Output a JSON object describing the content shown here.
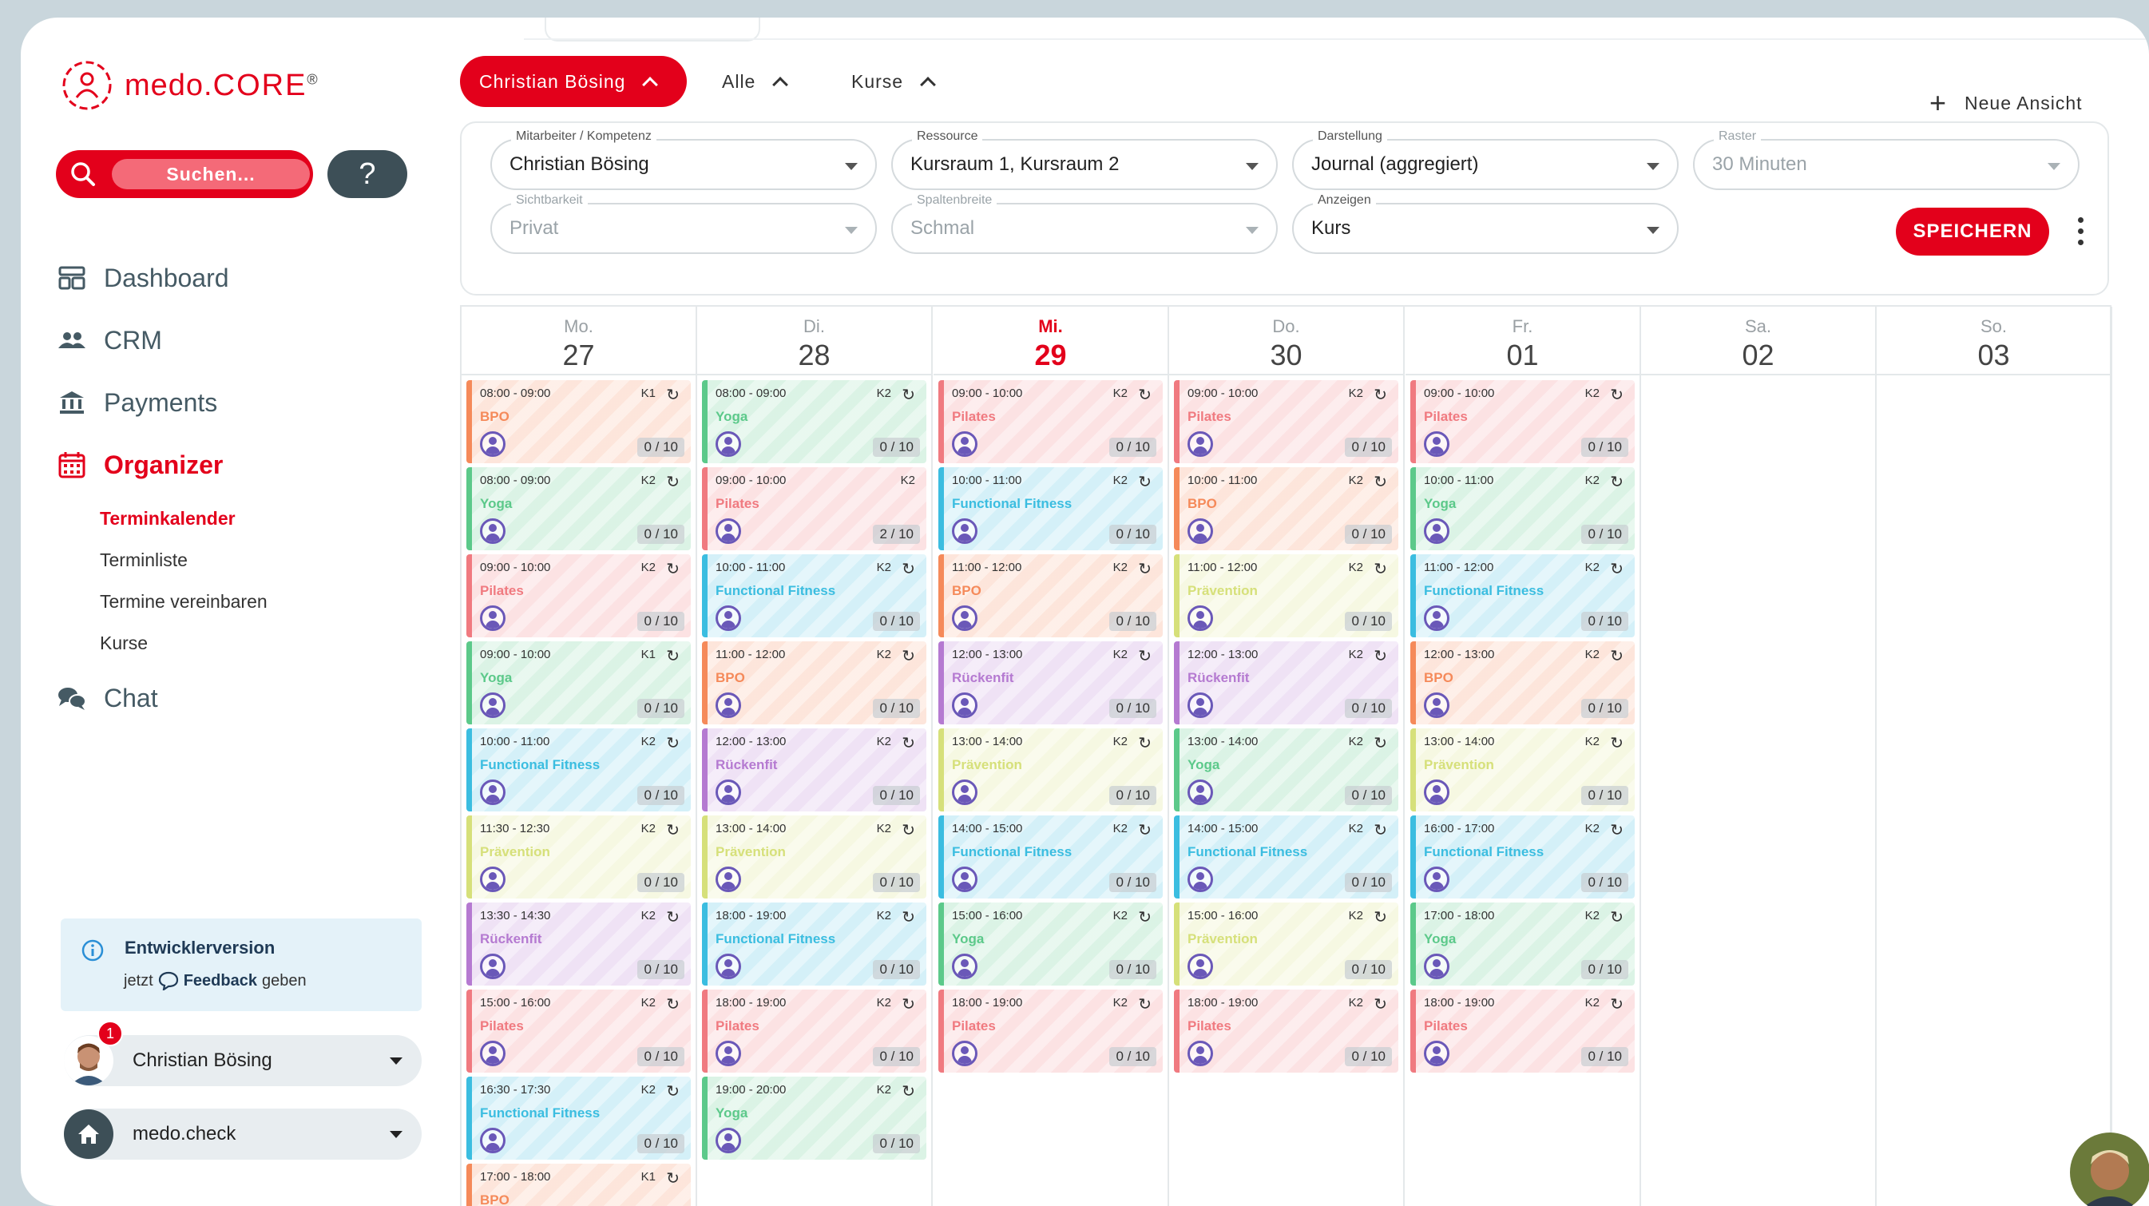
{
  "brand": {
    "name_prefix": "medo.",
    "name_suffix": "CORE",
    "mark": "®"
  },
  "search": {
    "label": "Suchen..."
  },
  "help": {
    "label": "?"
  },
  "nav": {
    "dashboard": "Dashboard",
    "crm": "CRM",
    "payments": "Payments",
    "organizer": "Organizer",
    "chat": "Chat",
    "sub": [
      "Terminkalender",
      "Terminliste",
      "Termine vereinbaren",
      "Kurse"
    ]
  },
  "dev": {
    "title": "Entwicklerversion",
    "prefix": "jetzt",
    "link": "Feedback",
    "suffix": "geben"
  },
  "user": {
    "name": "Christian Bösing",
    "badge": "1"
  },
  "workspace": {
    "name": "medo.check"
  },
  "topbar": {
    "user_filter": "Christian Bösing",
    "all": "Alle",
    "courses": "Kurse",
    "new_view": "Neue Ansicht"
  },
  "filters": {
    "staff": {
      "label": "Mitarbeiter / Kompetenz",
      "value": "Christian Bösing"
    },
    "resource": {
      "label": "Ressource",
      "value": "Kursraum 1, Kursraum 2"
    },
    "display": {
      "label": "Darstellung",
      "value": "Journal (aggregiert)"
    },
    "grid": {
      "label": "Raster",
      "value": "30 Minuten"
    },
    "visibility": {
      "label": "Sichtbarkeit",
      "value": "Privat"
    },
    "colwidth": {
      "label": "Spaltenbreite",
      "value": "Schmal"
    },
    "show": {
      "label": "Anzeigen",
      "value": "Kurs"
    },
    "save": "SPEICHERN"
  },
  "colors": {
    "accent": "#e3001b",
    "BPO": "#f58a5a",
    "Yoga": "#5cc98a",
    "Pilates": "#f07a80",
    "Functional Fitness": "#3bbde0",
    "Prävention": "#d6e07a",
    "Rückenfit": "#b57ad1"
  },
  "days": [
    {
      "name": "Mo.",
      "num": "27",
      "today": false,
      "events": [
        {
          "time": "08:00 - 09:00",
          "res": "K1",
          "rep": true,
          "title": "BPO",
          "cap": "0 / 10"
        },
        {
          "time": "08:00 - 09:00",
          "res": "K2",
          "rep": true,
          "title": "Yoga",
          "cap": "0 / 10"
        },
        {
          "time": "09:00 - 10:00",
          "res": "K2",
          "rep": true,
          "title": "Pilates",
          "cap": "0 / 10"
        },
        {
          "time": "09:00 - 10:00",
          "res": "K1",
          "rep": true,
          "title": "Yoga",
          "cap": "0 / 10"
        },
        {
          "time": "10:00 - 11:00",
          "res": "K2",
          "rep": true,
          "title": "Functional Fitness",
          "cap": "0 / 10"
        },
        {
          "time": "11:30 - 12:30",
          "res": "K2",
          "rep": true,
          "title": "Prävention",
          "cap": "0 / 10"
        },
        {
          "time": "13:30 - 14:30",
          "res": "K2",
          "rep": true,
          "title": "Rückenfit",
          "cap": "0 / 10"
        },
        {
          "time": "15:00 - 16:00",
          "res": "K2",
          "rep": true,
          "title": "Pilates",
          "cap": "0 / 10"
        },
        {
          "time": "16:30 - 17:30",
          "res": "K2",
          "rep": true,
          "title": "Functional Fitness",
          "cap": "0 / 10"
        },
        {
          "time": "17:00 - 18:00",
          "res": "K1",
          "rep": true,
          "title": "BPO",
          "cap": ""
        }
      ]
    },
    {
      "name": "Di.",
      "num": "28",
      "today": false,
      "events": [
        {
          "time": "08:00 - 09:00",
          "res": "K2",
          "rep": true,
          "title": "Yoga",
          "cap": "0 / 10"
        },
        {
          "time": "09:00 - 10:00",
          "res": "K2",
          "rep": false,
          "title": "Pilates",
          "cap": "2 / 10"
        },
        {
          "time": "10:00 - 11:00",
          "res": "K2",
          "rep": true,
          "title": "Functional Fitness",
          "cap": "0 / 10"
        },
        {
          "time": "11:00 - 12:00",
          "res": "K2",
          "rep": true,
          "title": "BPO",
          "cap": "0 / 10"
        },
        {
          "time": "12:00 - 13:00",
          "res": "K2",
          "rep": true,
          "title": "Rückenfit",
          "cap": "0 / 10"
        },
        {
          "time": "13:00 - 14:00",
          "res": "K2",
          "rep": true,
          "title": "Prävention",
          "cap": "0 / 10"
        },
        {
          "time": "18:00 - 19:00",
          "res": "K2",
          "rep": true,
          "title": "Functional Fitness",
          "cap": "0 / 10"
        },
        {
          "time": "18:00 - 19:00",
          "res": "K2",
          "rep": true,
          "title": "Pilates",
          "cap": "0 / 10"
        },
        {
          "time": "19:00 - 20:00",
          "res": "K2",
          "rep": true,
          "title": "Yoga",
          "cap": "0 / 10"
        }
      ]
    },
    {
      "name": "Mi.",
      "num": "29",
      "today": true,
      "events": [
        {
          "time": "09:00 - 10:00",
          "res": "K2",
          "rep": true,
          "title": "Pilates",
          "cap": "0 / 10"
        },
        {
          "time": "10:00 - 11:00",
          "res": "K2",
          "rep": true,
          "title": "Functional Fitness",
          "cap": "0 / 10"
        },
        {
          "time": "11:00 - 12:00",
          "res": "K2",
          "rep": true,
          "title": "BPO",
          "cap": "0 / 10"
        },
        {
          "time": "12:00 - 13:00",
          "res": "K2",
          "rep": true,
          "title": "Rückenfit",
          "cap": "0 / 10"
        },
        {
          "time": "13:00 - 14:00",
          "res": "K2",
          "rep": true,
          "title": "Prävention",
          "cap": "0 / 10"
        },
        {
          "time": "14:00 - 15:00",
          "res": "K2",
          "rep": true,
          "title": "Functional Fitness",
          "cap": "0 / 10"
        },
        {
          "time": "15:00 - 16:00",
          "res": "K2",
          "rep": true,
          "title": "Yoga",
          "cap": "0 / 10"
        },
        {
          "time": "18:00 - 19:00",
          "res": "K2",
          "rep": true,
          "title": "Pilates",
          "cap": "0 / 10"
        }
      ]
    },
    {
      "name": "Do.",
      "num": "30",
      "today": false,
      "events": [
        {
          "time": "09:00 - 10:00",
          "res": "K2",
          "rep": true,
          "title": "Pilates",
          "cap": "0 / 10"
        },
        {
          "time": "10:00 - 11:00",
          "res": "K2",
          "rep": true,
          "title": "BPO",
          "cap": "0 / 10"
        },
        {
          "time": "11:00 - 12:00",
          "res": "K2",
          "rep": true,
          "title": "Prävention",
          "cap": "0 / 10"
        },
        {
          "time": "12:00 - 13:00",
          "res": "K2",
          "rep": true,
          "title": "Rückenfit",
          "cap": "0 / 10"
        },
        {
          "time": "13:00 - 14:00",
          "res": "K2",
          "rep": true,
          "title": "Yoga",
          "cap": "0 / 10"
        },
        {
          "time": "14:00 - 15:00",
          "res": "K2",
          "rep": true,
          "title": "Functional Fitness",
          "cap": "0 / 10"
        },
        {
          "time": "15:00 - 16:00",
          "res": "K2",
          "rep": true,
          "title": "Prävention",
          "cap": "0 / 10"
        },
        {
          "time": "18:00 - 19:00",
          "res": "K2",
          "rep": true,
          "title": "Pilates",
          "cap": "0 / 10"
        }
      ]
    },
    {
      "name": "Fr.",
      "num": "01",
      "today": false,
      "events": [
        {
          "time": "09:00 - 10:00",
          "res": "K2",
          "rep": true,
          "title": "Pilates",
          "cap": "0 / 10"
        },
        {
          "time": "10:00 - 11:00",
          "res": "K2",
          "rep": true,
          "title": "Yoga",
          "cap": "0 / 10"
        },
        {
          "time": "11:00 - 12:00",
          "res": "K2",
          "rep": true,
          "title": "Functional Fitness",
          "cap": "0 / 10"
        },
        {
          "time": "12:00 - 13:00",
          "res": "K2",
          "rep": true,
          "title": "BPO",
          "cap": "0 / 10"
        },
        {
          "time": "13:00 - 14:00",
          "res": "K2",
          "rep": true,
          "title": "Prävention",
          "cap": "0 / 10"
        },
        {
          "time": "16:00 - 17:00",
          "res": "K2",
          "rep": true,
          "title": "Functional Fitness",
          "cap": "0 / 10"
        },
        {
          "time": "17:00 - 18:00",
          "res": "K2",
          "rep": true,
          "title": "Yoga",
          "cap": "0 / 10"
        },
        {
          "time": "18:00 - 19:00",
          "res": "K2",
          "rep": true,
          "title": "Pilates",
          "cap": "0 / 10"
        }
      ]
    },
    {
      "name": "Sa.",
      "num": "02",
      "today": false,
      "events": []
    },
    {
      "name": "So.",
      "num": "03",
      "today": false,
      "events": []
    }
  ]
}
